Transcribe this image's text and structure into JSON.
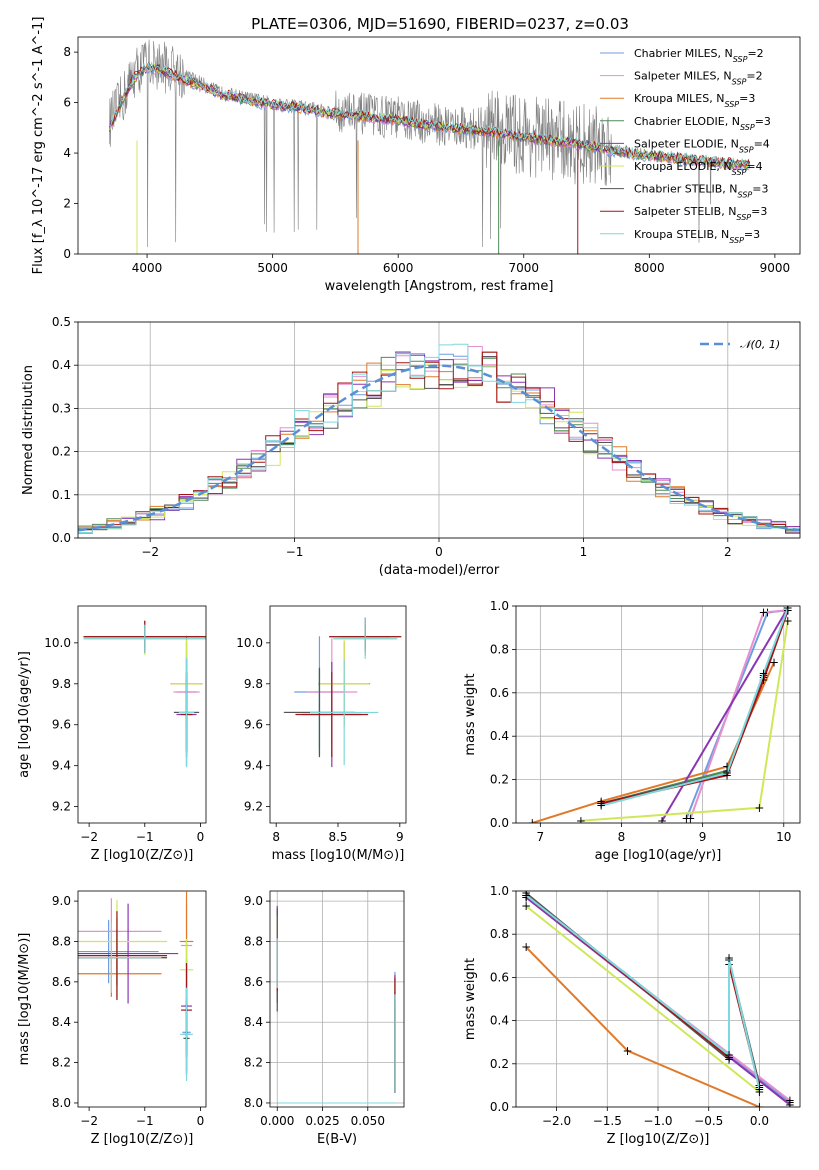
{
  "figure": {
    "title": "PLATE=0306, MJD=51690, FIBERID=0237, z=0.03"
  },
  "colors": {
    "data_gray": "#7f7f7f",
    "gaussian": "#5a8fd6",
    "models": [
      "#6f9ee0",
      "#e88fd0",
      "#e0792a",
      "#4f8a55",
      "#8c35b3",
      "#cfe85a",
      "#555555",
      "#a31515",
      "#7fd8de"
    ]
  },
  "chart_data": [
    {
      "id": "spectrum",
      "type": "line",
      "title": "PLATE=0306, MJD=51690, FIBERID=0237, z=0.03",
      "xlabel": "wavelength [Angstrom, rest frame]",
      "ylabel": "Flux [f_λ 10^-17 erg cm^-2 s^-1 A^-1]",
      "xlim": [
        3450,
        9200
      ],
      "ylim": [
        0,
        8.6
      ],
      "xticks": [
        4000,
        5000,
        6000,
        7000,
        8000,
        9000
      ],
      "yticks": [
        0,
        2,
        4,
        6,
        8
      ],
      "grid": false,
      "legend": "top-right",
      "data_series": {
        "x": [
          3700,
          3800,
          3900,
          4000,
          4100,
          4200,
          4300,
          4400,
          4500,
          4600,
          4800,
          5000,
          5200,
          5400,
          5600,
          5800,
          6000,
          6200,
          6400,
          6600,
          6800,
          7000,
          7200,
          7400,
          7600,
          7800,
          8000,
          8200,
          8400,
          8600,
          8800
        ],
        "y": [
          5.2,
          6.1,
          7.2,
          7.6,
          7.5,
          7.3,
          7.1,
          6.9,
          6.6,
          6.4,
          6.2,
          6.0,
          5.9,
          5.7,
          5.6,
          5.5,
          5.4,
          5.2,
          5.1,
          5.0,
          4.9,
          4.7,
          4.6,
          4.4,
          4.3,
          4.1,
          3.9,
          3.8,
          3.7,
          3.6,
          3.5
        ]
      },
      "model_x": [
        3700,
        3800,
        3900,
        4000,
        4100,
        4200,
        4300,
        4400,
        4500,
        4600,
        4800,
        5000,
        5200,
        5400,
        5600,
        5800,
        6000,
        6200,
        6400,
        6600,
        6800,
        7000,
        7200,
        7400,
        7600,
        7800,
        8000,
        8200,
        8400,
        8600,
        8800
      ],
      "model_y": [
        5.0,
        6.0,
        7.0,
        7.4,
        7.3,
        7.1,
        6.9,
        6.7,
        6.5,
        6.3,
        6.1,
        5.9,
        5.8,
        5.6,
        5.5,
        5.4,
        5.3,
        5.1,
        5.0,
        4.9,
        4.8,
        4.6,
        4.5,
        4.4,
        4.2,
        4.0,
        3.9,
        3.8,
        3.7,
        3.6,
        3.5
      ],
      "series": [
        {
          "name": "Chabrier MILES, N",
          "sub": "SSP",
          "n": "=2"
        },
        {
          "name": "Salpeter MILES, N",
          "sub": "SSP",
          "n": "=2"
        },
        {
          "name": "Kroupa MILES, N",
          "sub": "SSP",
          "n": "=3"
        },
        {
          "name": "Chabrier ELODIE, N",
          "sub": "SSP",
          "n": "=3"
        },
        {
          "name": "Salpeter ELODIE, N",
          "sub": "SSP",
          "n": "=4"
        },
        {
          "name": "Kroupa ELODIE, N",
          "sub": "SSP",
          "n": "=4"
        },
        {
          "name": "Chabrier STELIB, N",
          "sub": "SSP",
          "n": "=3"
        },
        {
          "name": "Salpeter STELIB, N",
          "sub": "SSP",
          "n": "=3"
        },
        {
          "name": "Kroupa STELIB, N",
          "sub": "SSP",
          "n": "=3"
        }
      ]
    },
    {
      "id": "residuals",
      "type": "bar",
      "xlabel": "(data-model)/error",
      "ylabel": "Normed distribution",
      "xlim": [
        -2.5,
        2.5
      ],
      "ylim": [
        0,
        0.5
      ],
      "xticks": [
        -2,
        -1,
        0,
        1,
        2
      ],
      "yticks": [
        0.0,
        0.1,
        0.2,
        0.3,
        0.4,
        0.5
      ],
      "grid": true,
      "legend": "top-right",
      "legend_label": "𝒩(0, 1)",
      "bin_width": 0.1
    },
    {
      "id": "age_vs_Z",
      "type": "scatter",
      "xlabel": "Z [log10(Z/Z⊙)]",
      "ylabel": "age  [log10(age/yr)]",
      "xlim": [
        -2.2,
        0.1
      ],
      "ylim": [
        9.12,
        10.18
      ],
      "xticks": [
        -2,
        -1,
        0
      ],
      "yticks": [
        9.2,
        9.4,
        9.6,
        9.8,
        10.0
      ],
      "grid": false
    },
    {
      "id": "age_vs_mass",
      "type": "scatter",
      "xlabel": "mass [log10(M/M⊙)]",
      "xlim": [
        7.95,
        9.05
      ],
      "ylim": [
        9.12,
        10.18
      ],
      "xticks": [
        8.0,
        8.5,
        9.0
      ],
      "yticks": [
        9.2,
        9.4,
        9.6,
        9.8,
        10.0
      ],
      "grid": false
    },
    {
      "id": "mass_weight_vs_age",
      "type": "line",
      "xlabel": "age  [log10(age/yr)]",
      "ylabel": "mass weight",
      "xlim": [
        6.7,
        10.2
      ],
      "ylim": [
        0,
        1.0
      ],
      "xticks": [
        7,
        8,
        9,
        10
      ],
      "yticks": [
        0.0,
        0.2,
        0.4,
        0.6,
        0.8,
        1.0
      ],
      "grid": true
    },
    {
      "id": "mass_vs_Z",
      "type": "scatter",
      "xlabel": "Z [log10(Z/Z⊙)]",
      "ylabel": "mass [log10(M/M⊙)]",
      "xlim": [
        -2.2,
        0.1
      ],
      "ylim": [
        7.98,
        9.05
      ],
      "xticks": [
        -2,
        -1,
        0
      ],
      "yticks": [
        8.0,
        8.2,
        8.4,
        8.6,
        8.8,
        9.0
      ],
      "grid": false
    },
    {
      "id": "mass_vs_ebv",
      "type": "scatter",
      "xlabel": "E(B-V)",
      "xlim": [
        -0.004,
        0.07
      ],
      "ylim": [
        7.98,
        9.05
      ],
      "xticks": [
        0.0,
        0.025,
        0.05
      ],
      "xticklabels": [
        "0.000",
        "0.025",
        "0.050"
      ],
      "yticks": [
        8.0,
        8.2,
        8.4,
        8.6,
        8.8,
        9.0
      ],
      "grid": true
    },
    {
      "id": "mass_weight_vs_Z",
      "type": "line",
      "xlabel": "Z [log10(Z/Z⊙)]",
      "ylabel": "mass weight",
      "xlim": [
        -2.4,
        0.4
      ],
      "ylim": [
        0,
        1.0
      ],
      "xticks": [
        -2.0,
        -1.5,
        -1.0,
        -0.5,
        0.0
      ],
      "xticklabels": [
        "−2.0",
        "−1.5",
        "−1.0",
        "−0.5",
        "0.0"
      ],
      "yticks": [
        0.0,
        0.2,
        0.4,
        0.6,
        0.8,
        1.0
      ],
      "grid": true
    }
  ]
}
